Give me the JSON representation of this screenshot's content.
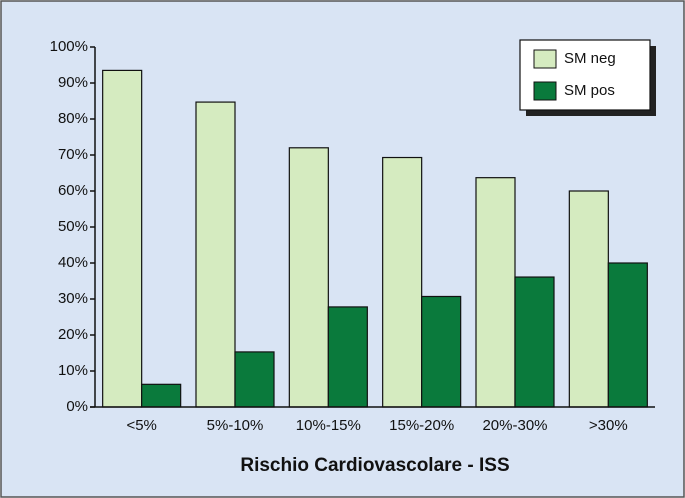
{
  "chart_data": {
    "type": "bar",
    "x_label": "Rischio Cardiovascolare - ISS",
    "categories": [
      "<5%",
      "5%-10%",
      "10%-15%",
      "15%-20%",
      "20%-30%",
      ">30%"
    ],
    "series": [
      {
        "name": "SM neg",
        "color": "#d5ebc0",
        "values": [
          93.5,
          84.7,
          72,
          69.3,
          63.7,
          60
        ]
      },
      {
        "name": "SM pos",
        "color": "#0a7a3c",
        "values": [
          6.3,
          15.3,
          27.8,
          30.7,
          36.1,
          40
        ]
      }
    ],
    "ylim": [
      0,
      100
    ],
    "yticks": [
      {
        "value": 0,
        "label": "0%"
      },
      {
        "value": 10,
        "label": "10%"
      },
      {
        "value": 20,
        "label": "20%"
      },
      {
        "value": 30,
        "label": "30%"
      },
      {
        "value": 40,
        "label": "40%"
      },
      {
        "value": 50,
        "label": "50%"
      },
      {
        "value": 60,
        "label": "60%"
      },
      {
        "value": 70,
        "label": "70%"
      },
      {
        "value": 80,
        "label": "80%"
      },
      {
        "value": 90,
        "label": "90%"
      },
      {
        "value": 100,
        "label": "100%"
      }
    ],
    "legend": "top-right"
  }
}
